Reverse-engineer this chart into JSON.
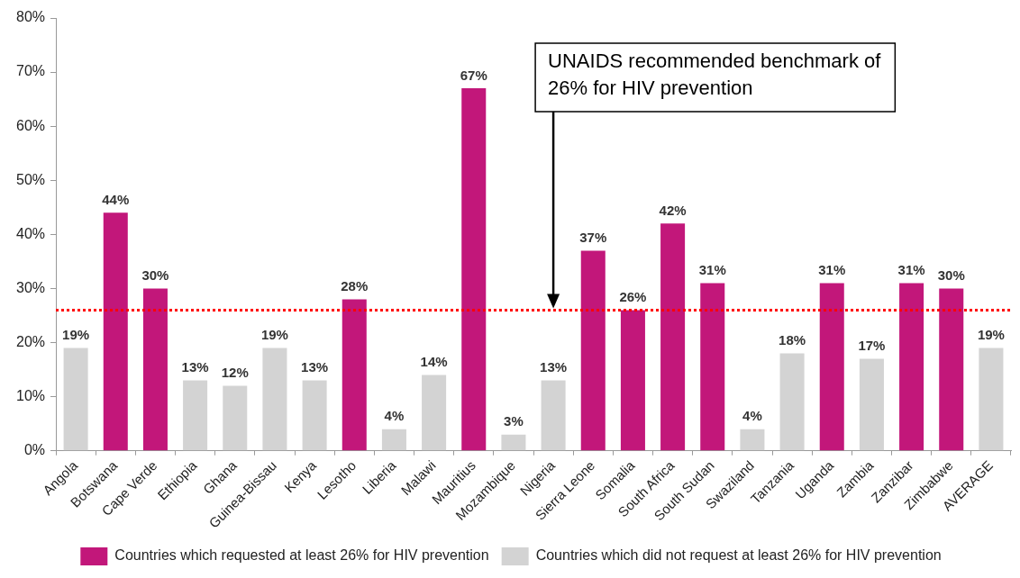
{
  "chart_data": {
    "type": "bar",
    "categories": [
      "Angola",
      "Botswana",
      "Cape Verde",
      "Ethiopia",
      "Ghana",
      "Guinea-Bissau",
      "Kenya",
      "Lesotho",
      "Liberia",
      "Malawi",
      "Mauritius",
      "Mozambique",
      "Nigeria",
      "Sierra Leone",
      "Somalia",
      "South Africa",
      "South Sudan",
      "Swaziland",
      "Tanzania",
      "Uganda",
      "Zambia",
      "Zanzibar",
      "Zimbabwe",
      "AVERAGE"
    ],
    "series": [
      {
        "name": "Countries which requested at least 26% for HIV prevention",
        "color": "#c2177a",
        "values": [
          null,
          44,
          30,
          null,
          null,
          null,
          null,
          28,
          null,
          null,
          67,
          null,
          null,
          37,
          26,
          42,
          31,
          null,
          null,
          31,
          null,
          31,
          30,
          null
        ],
        "value_labels": [
          null,
          "44%",
          "30%",
          null,
          null,
          null,
          null,
          "28%",
          null,
          null,
          "67%",
          null,
          null,
          "37%",
          "26%",
          "42%",
          "31%",
          null,
          null,
          "31%",
          null,
          "31%",
          "30%",
          null
        ]
      },
      {
        "name": "Countries which did not request at least 26% for HIV prevention",
        "color": "#d3d3d3",
        "values": [
          19,
          null,
          null,
          13,
          12,
          19,
          13,
          null,
          4,
          14,
          null,
          3,
          13,
          null,
          null,
          null,
          null,
          4,
          18,
          null,
          17,
          null,
          null,
          19
        ],
        "value_labels": [
          "19%",
          null,
          null,
          "13%",
          "12%",
          "19%",
          "13%",
          null,
          "4%",
          "14%",
          null,
          "3%",
          "13%",
          null,
          null,
          null,
          null,
          "4%",
          "18%",
          null,
          "17%",
          null,
          null,
          "19%"
        ]
      }
    ],
    "ylim": [
      0,
      80
    ],
    "yticks": [
      {
        "value": 0,
        "label": "0%"
      },
      {
        "value": 10,
        "label": "10%"
      },
      {
        "value": 20,
        "label": "20%"
      },
      {
        "value": 30,
        "label": "30%"
      },
      {
        "value": 40,
        "label": "40%"
      },
      {
        "value": 50,
        "label": "50%"
      },
      {
        "value": 60,
        "label": "60%"
      },
      {
        "value": 70,
        "label": "70%"
      },
      {
        "value": 80,
        "label": "80%"
      }
    ],
    "grid": false,
    "legend": "bottom",
    "ref_lines": [
      {
        "axis": "y",
        "value": 26,
        "color": "#ff0000",
        "line_style": "dotted"
      }
    ],
    "annotations": [
      {
        "text": "UNAIDS recommended benchmark of 26% for HIV prevention",
        "x": "Nigeria",
        "y": 26
      }
    ]
  }
}
